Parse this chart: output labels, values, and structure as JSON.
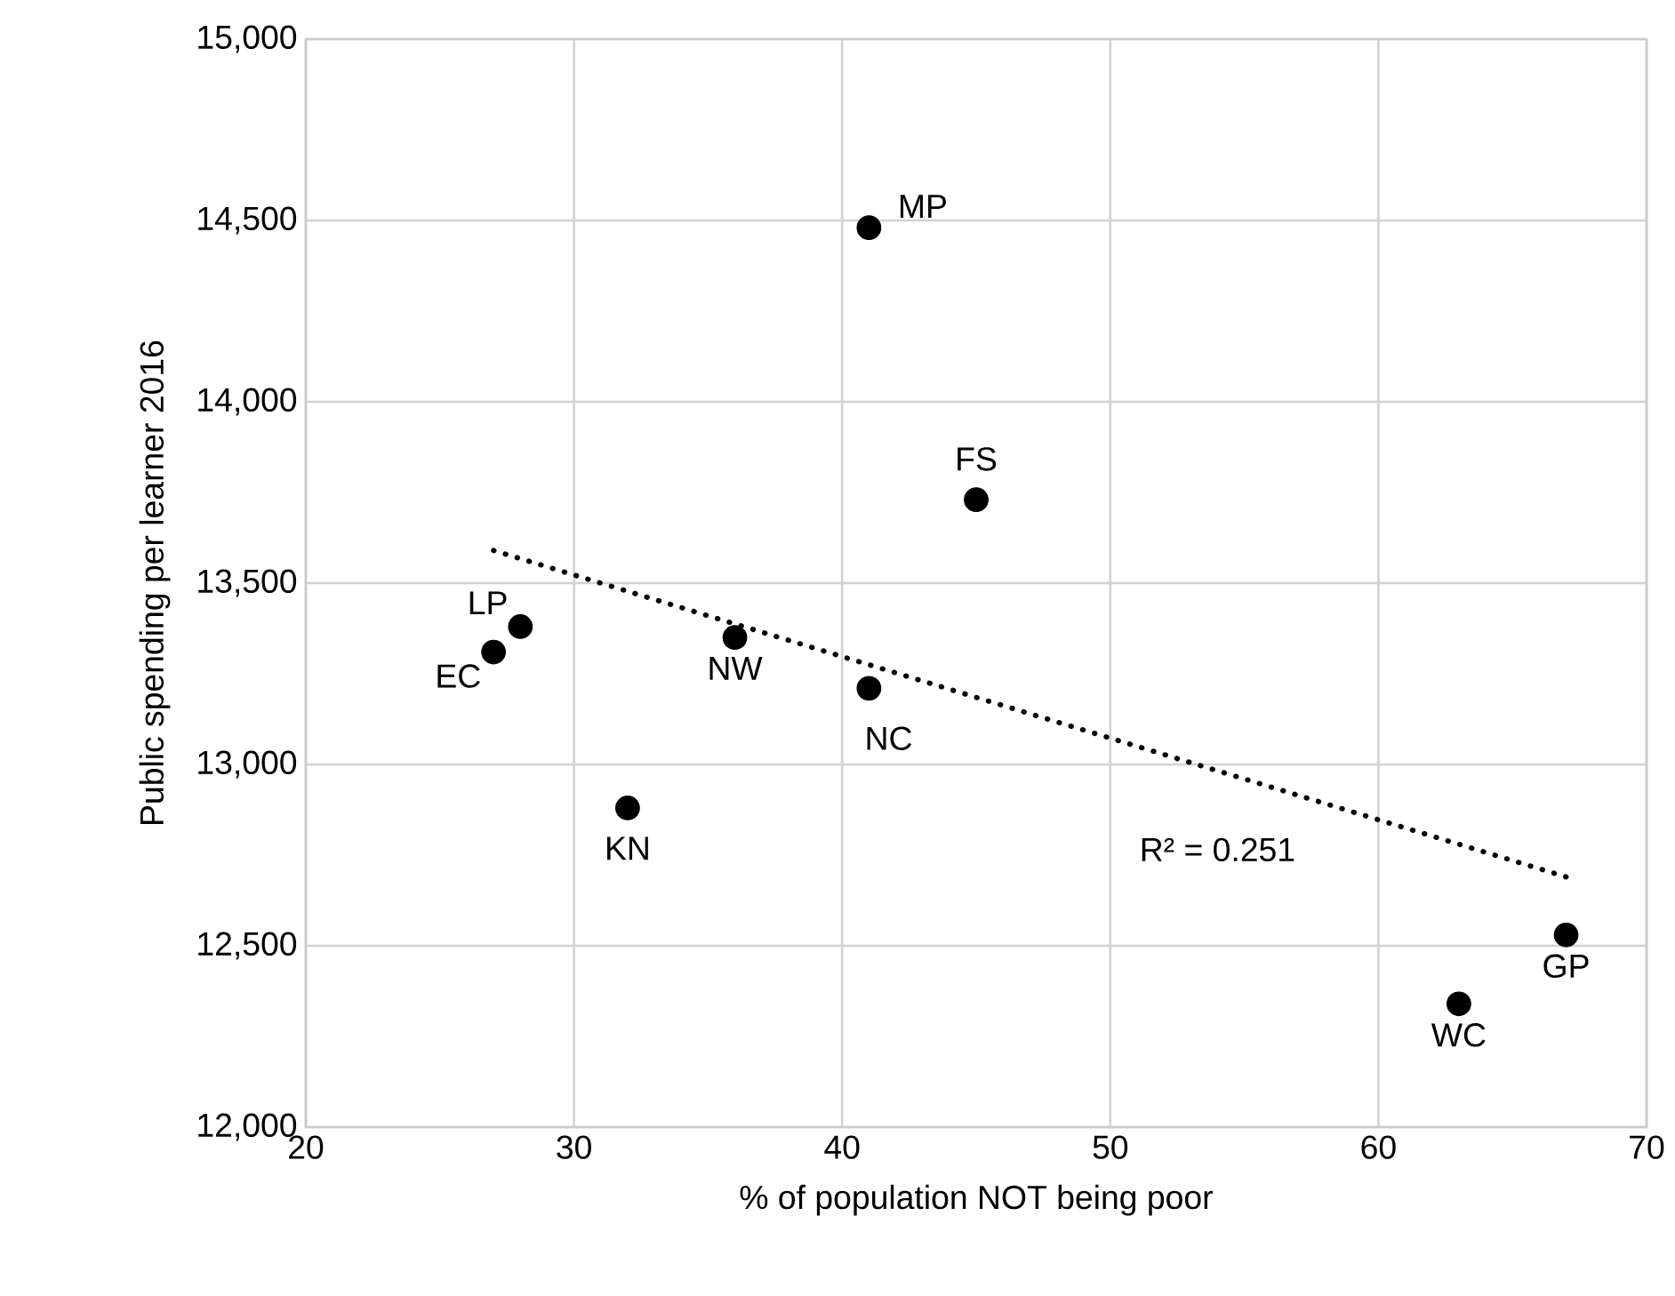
{
  "chart_data": {
    "type": "scatter",
    "xlabel": "% of population NOT being poor",
    "ylabel": "Public spending per learner 2016",
    "xlim": [
      20,
      70
    ],
    "xticks": [
      20,
      30,
      40,
      50,
      60,
      70
    ],
    "ylim": [
      12000,
      15000
    ],
    "yticks": [
      {
        "value": 12000,
        "label": "12,000"
      },
      {
        "value": 12500,
        "label": "12,500"
      },
      {
        "value": 13000,
        "label": "13,000"
      },
      {
        "value": 13500,
        "label": "13,500"
      },
      {
        "value": 14000,
        "label": "14,000"
      },
      {
        "value": 14500,
        "label": "14,500"
      },
      {
        "value": 15000,
        "label": "15,000"
      }
    ],
    "grid": true,
    "series": [
      {
        "color": "#000000",
        "marker": "circle",
        "x": [
          27,
          28,
          36,
          41,
          32,
          41,
          45,
          63,
          67
        ],
        "values": [
          13310,
          13380,
          13350,
          13210,
          12880,
          14480,
          13730,
          12340,
          12530
        ]
      },
      {
        "type": "line",
        "color": "#000000",
        "marker": "none",
        "line_style": "dotted",
        "x": [
          27,
          67
        ],
        "values": [
          13590,
          12690
        ]
      }
    ],
    "annotations": [
      {
        "text": "EC",
        "x": 27,
        "y": 13310
      },
      {
        "text": "LP",
        "x": 28,
        "y": 13380
      },
      {
        "text": "NW",
        "x": 36,
        "y": 13350
      },
      {
        "text": "NC",
        "x": 41,
        "y": 13210
      },
      {
        "text": "KN",
        "x": 32,
        "y": 12880
      },
      {
        "text": "MP",
        "x": 41,
        "y": 14480
      },
      {
        "text": "FS",
        "x": 45,
        "y": 13730
      },
      {
        "text": "WC",
        "x": 63,
        "y": 12340
      },
      {
        "text": "GP",
        "x": 67,
        "y": 12530
      },
      "R² = 0.251"
    ]
  }
}
